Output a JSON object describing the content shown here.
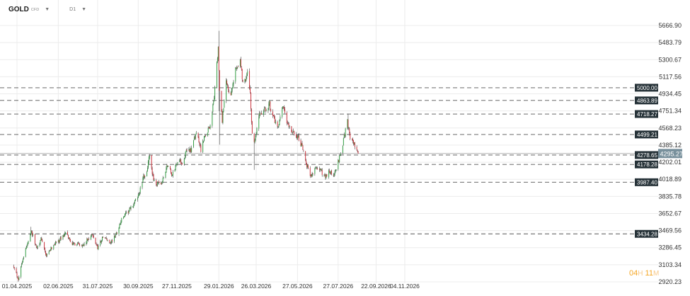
{
  "toolbar": {
    "symbol": "GOLD",
    "instrument_type": "CFD",
    "timeframe": "D1"
  },
  "countdown": {
    "hours": "04",
    "hours_unit": "H",
    "minutes": "11",
    "minutes_unit": "M"
  },
  "colors": {
    "up": "#2e9e3f",
    "down": "#d0303a",
    "grid": "#ececec",
    "level_line": "#555555",
    "level_tag_bg": "#263238",
    "price_tag_bg": "#78909c",
    "current_price_line": "#b0b0b0"
  },
  "chart_data": {
    "type": "candlestick",
    "y_ticks": [
      "5666.90",
      "5483.79",
      "5300.67",
      "5117.56",
      "4934.45",
      "4751.34",
      "4568.23",
      "4385.12",
      "4202.01",
      "4018.89",
      "3835.78",
      "3652.67",
      "3469.56",
      "3286.45",
      "3103.34",
      "2920.23"
    ],
    "x_ticks": [
      "01.04.2025",
      "02.06.2025",
      "31.07.2025",
      "30.09.2025",
      "27.11.2025",
      "29.01.2026",
      "26.03.2026",
      "27.05.2026",
      "27.07.2026",
      "22.09.2026",
      "04.11.2026"
    ],
    "x_tick_dates": [
      "2025-04-01",
      "2025-06-02",
      "2025-07-31",
      "2025-09-30",
      "2025-11-27",
      "2026-01-29",
      "2026-03-26",
      "2026-05-27",
      "2026-07-27",
      "2026-09-22",
      "2026-11-04"
    ],
    "ylim": [
      2890,
      5720
    ],
    "levels": [
      {
        "label": "5000.00",
        "value": 5000.0,
        "style": "dashed"
      },
      {
        "label": "4863.89",
        "value": 4863.89,
        "style": "dashed"
      },
      {
        "label": "4718.27",
        "value": 4718.27,
        "style": "dashed"
      },
      {
        "label": "4499.21",
        "value": 4499.21,
        "style": "dashed"
      },
      {
        "label": "4278.65",
        "value": 4278.65,
        "style": "dashed"
      },
      {
        "label": "4178.28",
        "value": 4178.28,
        "style": "dashed"
      },
      {
        "label": "3987.40",
        "value": 3987.4,
        "style": "dashed"
      },
      {
        "label": "3434.28",
        "value": 3434.28,
        "style": "dashed"
      }
    ],
    "current_price": {
      "label": "4295.27",
      "value": 4295.27
    },
    "date_range": [
      "2025-03-27",
      "2026-08-26"
    ],
    "price_path": [
      [
        "2025-03-27",
        3100
      ],
      [
        "2025-04-03",
        2950
      ],
      [
        "2025-04-10",
        3180
      ],
      [
        "2025-04-17",
        3330
      ],
      [
        "2025-04-22",
        3480
      ],
      [
        "2025-04-30",
        3290
      ],
      [
        "2025-05-08",
        3380
      ],
      [
        "2025-05-15",
        3190
      ],
      [
        "2025-05-26",
        3320
      ],
      [
        "2025-06-04",
        3370
      ],
      [
        "2025-06-13",
        3440
      ],
      [
        "2025-06-24",
        3320
      ],
      [
        "2025-07-01",
        3340
      ],
      [
        "2025-07-10",
        3310
      ],
      [
        "2025-07-22",
        3430
      ],
      [
        "2025-07-31",
        3290
      ],
      [
        "2025-08-08",
        3400
      ],
      [
        "2025-08-20",
        3340
      ],
      [
        "2025-08-29",
        3450
      ],
      [
        "2025-09-05",
        3590
      ],
      [
        "2025-09-16",
        3680
      ],
      [
        "2025-09-23",
        3750
      ],
      [
        "2025-10-01",
        3860
      ],
      [
        "2025-10-08",
        4040
      ],
      [
        "2025-10-13",
        4110
      ],
      [
        "2025-10-17",
        4280
      ],
      [
        "2025-10-21",
        4060
      ],
      [
        "2025-10-28",
        3960
      ],
      [
        "2025-11-05",
        3990
      ],
      [
        "2025-11-13",
        4180
      ],
      [
        "2025-11-20",
        4060
      ],
      [
        "2025-11-28",
        4220
      ],
      [
        "2025-12-05",
        4200
      ],
      [
        "2025-12-12",
        4330
      ],
      [
        "2025-12-19",
        4340
      ],
      [
        "2025-12-26",
        4520
      ],
      [
        "2026-01-02",
        4340
      ],
      [
        "2026-01-09",
        4500
      ],
      [
        "2026-01-16",
        4600
      ],
      [
        "2026-01-22",
        4900
      ],
      [
        "2026-01-28",
        5420
      ],
      [
        "2026-01-30",
        4950
      ],
      [
        "2026-02-03",
        4650
      ],
      [
        "2026-02-09",
        5050
      ],
      [
        "2026-02-16",
        4900
      ],
      [
        "2026-02-23",
        5200
      ],
      [
        "2026-03-02",
        5300
      ],
      [
        "2026-03-06",
        5050
      ],
      [
        "2026-03-13",
        5150
      ],
      [
        "2026-03-17",
        4950
      ],
      [
        "2026-03-20",
        4480
      ],
      [
        "2026-03-24",
        4420
      ],
      [
        "2026-03-31",
        4700
      ],
      [
        "2026-04-07",
        4750
      ],
      [
        "2026-04-15",
        4830
      ],
      [
        "2026-04-22",
        4650
      ],
      [
        "2026-04-28",
        4560
      ],
      [
        "2026-05-05",
        4800
      ],
      [
        "2026-05-12",
        4600
      ],
      [
        "2026-05-20",
        4520
      ],
      [
        "2026-05-27",
        4480
      ],
      [
        "2026-06-02",
        4380
      ],
      [
        "2026-06-09",
        4200
      ],
      [
        "2026-06-16",
        4050
      ],
      [
        "2026-06-23",
        4140
      ],
      [
        "2026-06-30",
        4120
      ],
      [
        "2026-07-07",
        4050
      ],
      [
        "2026-07-14",
        4100
      ],
      [
        "2026-07-21",
        4060
      ],
      [
        "2026-07-28",
        4230
      ],
      [
        "2026-08-03",
        4400
      ],
      [
        "2026-08-10",
        4650
      ],
      [
        "2026-08-14",
        4470
      ],
      [
        "2026-08-18",
        4420
      ],
      [
        "2026-08-26",
        4295.27
      ]
    ]
  }
}
